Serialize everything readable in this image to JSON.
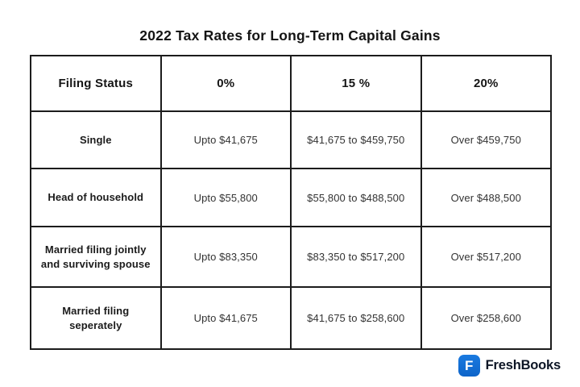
{
  "page": {
    "background": "#ffffff"
  },
  "chart_data": {
    "type": "table",
    "title": "2022 Tax Rates for Long-Term Capital Gains",
    "columns": [
      "Filing Status",
      "0%",
      "15 %",
      "20%"
    ],
    "rows": [
      [
        "Single",
        "Upto $41,675",
        "$41,675 to $459,750",
        "Over $459,750"
      ],
      [
        "Head of household",
        "Upto $55,800",
        "$55,800 to $488,500",
        "Over $488,500"
      ],
      [
        "Married filing jointly and surviving spouse",
        "Upto $83,350",
        "$83,350 to $517,200",
        "Over $517,200"
      ],
      [
        "Married filing seperately",
        "Upto $41,675",
        "$41,675 to $258,600",
        "Over $258,600"
      ]
    ],
    "layout": {
      "border_color": "#1c1c1c",
      "header_bold": true,
      "first_column_bold": true
    }
  },
  "branding": {
    "logo_letter": "F",
    "name": "FreshBooks",
    "brand_blue": "#1273dc",
    "wordmark_color": "#0d1626"
  }
}
